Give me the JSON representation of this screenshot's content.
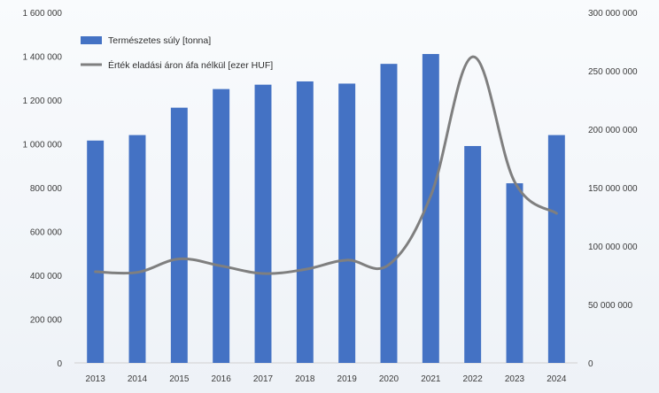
{
  "chart_data": {
    "type": "bar+line",
    "categories": [
      "2013",
      "2014",
      "2015",
      "2016",
      "2017",
      "2018",
      "2019",
      "2020",
      "2021",
      "2022",
      "2023",
      "2024"
    ],
    "series": [
      {
        "name": "Természetes súly [tonna]",
        "type": "bar",
        "axis": "left",
        "color": "#4472c4",
        "values": [
          1015000,
          1040000,
          1165000,
          1250000,
          1270000,
          1285000,
          1275000,
          1365000,
          1410000,
          990000,
          820000,
          1040000
        ]
      },
      {
        "name": "Érték eladási áron áfa nélkül [ezer HUF]",
        "type": "line",
        "axis": "right",
        "color": "#7f7f7f",
        "values": [
          78000000,
          77500000,
          89000000,
          83000000,
          76500000,
          80000000,
          88000000,
          84000000,
          143000000,
          262000000,
          155000000,
          128000000
        ]
      }
    ],
    "left_axis": {
      "min": 0,
      "max": 1600000,
      "ticks": [
        "0",
        "200 000",
        "400 000",
        "600 000",
        "800 000",
        "1 000 000",
        "1 200 000",
        "1 400 000",
        "1 600 000"
      ]
    },
    "right_axis": {
      "min": 0,
      "max": 300000000,
      "ticks": [
        "0",
        "50 000 000",
        "100 000 000",
        "150 000 000",
        "200 000 000",
        "250 000 000",
        "300 000 000"
      ]
    },
    "legend_position": "top-left",
    "grid": false,
    "title": "",
    "xlabel": "",
    "ylabel": ""
  }
}
